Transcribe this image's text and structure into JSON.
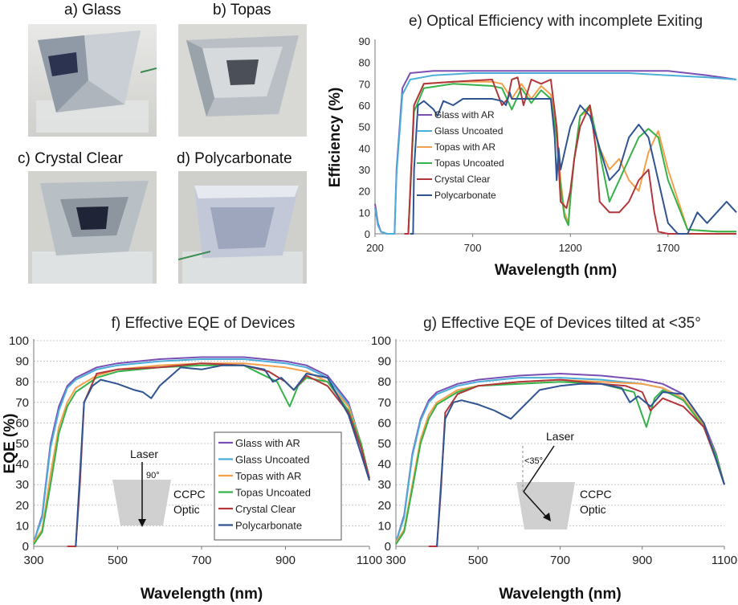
{
  "photos": [
    {
      "label": "a) Glass"
    },
    {
      "label": "b) Topas"
    },
    {
      "label": "c) Crystal Clear"
    },
    {
      "label": "d) Polycarbonate"
    }
  ],
  "colors": {
    "glass_ar": "#7a4fb4",
    "glass_uncoated": "#4aaed8",
    "topas_ar": "#f4a04a",
    "topas_uncoated": "#36b24a",
    "crystal_clear": "#b3363a",
    "polycarbonate": "#2f5491"
  },
  "chart_data": [
    {
      "type": "line",
      "title": "e) Optical Efficiency with incomplete Exiting",
      "xlabel": "Wavelength (nm)",
      "ylabel": "Efficiency (%)",
      "xlim": [
        200,
        2050
      ],
      "ylim": [
        0,
        90
      ],
      "xticks": [
        200,
        700,
        1200,
        1700
      ],
      "yticks": [
        0,
        10,
        20,
        30,
        40,
        50,
        60,
        70,
        80,
        90
      ],
      "grid": false,
      "legend_position": "left-center",
      "series": [
        {
          "name": "Glass with AR",
          "x": [
            200,
            215,
            230,
            260,
            290,
            300,
            310,
            340,
            380,
            500,
            700,
            900,
            1100,
            1300,
            1500,
            1700,
            1900,
            2050
          ],
          "y": [
            14,
            5,
            1,
            0,
            0,
            0,
            30,
            68,
            75,
            76,
            76,
            76,
            76,
            76,
            76,
            76,
            74,
            72
          ]
        },
        {
          "name": "Glass Uncoated",
          "x": [
            200,
            215,
            230,
            260,
            290,
            300,
            310,
            340,
            380,
            500,
            700,
            900,
            1100,
            1300,
            1500,
            1700,
            1900,
            2050
          ],
          "y": [
            12,
            4,
            1,
            0,
            0,
            0,
            28,
            65,
            72,
            74,
            75,
            75,
            75,
            75,
            75,
            74,
            73,
            72
          ]
        },
        {
          "name": "Topas with AR",
          "x": [
            350,
            370,
            380,
            400,
            450,
            600,
            800,
            850,
            900,
            950,
            1000,
            1050,
            1100,
            1130,
            1150,
            1170,
            1190,
            1200,
            1220,
            1250,
            1300,
            1350,
            1400,
            1450,
            1500,
            1550,
            1600,
            1650,
            1700,
            1800,
            1950,
            2050
          ],
          "y": [
            0,
            0,
            20,
            60,
            70,
            71,
            71,
            70,
            63,
            70,
            63,
            69,
            65,
            50,
            25,
            10,
            5,
            18,
            35,
            55,
            58,
            40,
            30,
            35,
            25,
            20,
            38,
            48,
            30,
            2,
            1,
            1
          ]
        },
        {
          "name": "Topas Uncoated",
          "x": [
            350,
            370,
            380,
            400,
            450,
            600,
            800,
            850,
            900,
            950,
            1000,
            1050,
            1100,
            1130,
            1150,
            1170,
            1190,
            1200,
            1220,
            1250,
            1300,
            1350,
            1400,
            1450,
            1500,
            1550,
            1600,
            1650,
            1700,
            1800,
            1950,
            2050
          ],
          "y": [
            0,
            0,
            18,
            57,
            68,
            70,
            69,
            68,
            58,
            68,
            61,
            67,
            63,
            45,
            22,
            8,
            4,
            16,
            35,
            55,
            60,
            38,
            15,
            25,
            35,
            45,
            49,
            45,
            25,
            2,
            1,
            1
          ]
        },
        {
          "name": "Crystal Clear",
          "x": [
            350,
            370,
            380,
            400,
            450,
            600,
            800,
            850,
            880,
            900,
            930,
            960,
            1000,
            1050,
            1100,
            1130,
            1150,
            1180,
            1200,
            1220,
            1250,
            1300,
            1330,
            1350,
            1400,
            1450,
            1500,
            1550,
            1600,
            1630,
            1650,
            1700,
            1800,
            1950,
            2050
          ],
          "y": [
            0,
            0,
            20,
            60,
            70,
            71,
            72,
            60,
            63,
            72,
            73,
            60,
            72,
            70,
            72,
            50,
            15,
            12,
            20,
            35,
            50,
            60,
            40,
            15,
            10,
            10,
            15,
            25,
            30,
            10,
            1,
            0,
            0,
            0,
            0
          ]
        },
        {
          "name": "Polycarbonate",
          "x": [
            380,
            395,
            400,
            420,
            450,
            500,
            520,
            550,
            600,
            650,
            700,
            750,
            800,
            850,
            870,
            890,
            900,
            950,
            1000,
            1050,
            1100,
            1120,
            1130,
            1140,
            1150,
            1200,
            1250,
            1300,
            1350,
            1400,
            1450,
            1500,
            1550,
            1600,
            1650,
            1700,
            1750,
            1800,
            1850,
            1900,
            1950,
            2000,
            2050
          ],
          "y": [
            0,
            0,
            30,
            60,
            62,
            58,
            55,
            62,
            60,
            63,
            63,
            63,
            63,
            62,
            60,
            66,
            63,
            63,
            63,
            63,
            63,
            45,
            25,
            40,
            30,
            50,
            60,
            55,
            40,
            25,
            30,
            45,
            51,
            45,
            25,
            5,
            0,
            0,
            10,
            5,
            10,
            15,
            10
          ]
        }
      ]
    },
    {
      "type": "line",
      "title": "f) Effective EQE of Devices",
      "xlabel": "Wavelength (nm)",
      "ylabel": "EQE (%)",
      "xlim": [
        300,
        1100
      ],
      "ylim": [
        0,
        100
      ],
      "xticks": [
        300,
        500,
        700,
        900,
        1100
      ],
      "yticks": [
        0,
        10,
        20,
        30,
        40,
        50,
        60,
        70,
        80,
        90,
        100
      ],
      "grid": true,
      "legend_position": "bottom-right",
      "annotation": {
        "laser": "Laser",
        "angle": "90°",
        "optic_line1": "CCPC",
        "optic_line2": "Optic"
      },
      "series": [
        {
          "name": "Glass with AR",
          "x": [
            300,
            320,
            340,
            360,
            380,
            400,
            450,
            500,
            600,
            700,
            800,
            900,
            950,
            1000,
            1050,
            1080,
            1100
          ],
          "y": [
            2,
            15,
            50,
            68,
            78,
            82,
            87,
            89,
            91,
            92,
            92,
            90,
            88,
            83,
            70,
            50,
            33
          ]
        },
        {
          "name": "Glass Uncoated",
          "x": [
            300,
            320,
            340,
            360,
            380,
            400,
            450,
            500,
            600,
            700,
            800,
            900,
            950,
            1000,
            1050,
            1080,
            1100
          ],
          "y": [
            2,
            14,
            48,
            66,
            77,
            81,
            86,
            88,
            90,
            91,
            91,
            89,
            87,
            82,
            69,
            50,
            33
          ]
        },
        {
          "name": "Topas with AR",
          "x": [
            300,
            320,
            340,
            360,
            380,
            400,
            450,
            500,
            600,
            700,
            800,
            900,
            950,
            1000,
            1050,
            1080,
            1100
          ],
          "y": [
            2,
            8,
            35,
            58,
            70,
            77,
            83,
            86,
            88,
            89,
            89,
            87,
            85,
            80,
            68,
            50,
            33
          ]
        },
        {
          "name": "Topas Uncoated",
          "x": [
            300,
            320,
            340,
            360,
            380,
            400,
            450,
            500,
            600,
            700,
            800,
            880,
            910,
            930,
            950,
            1000,
            1050,
            1080,
            1100
          ],
          "y": [
            1,
            7,
            30,
            55,
            68,
            75,
            82,
            85,
            87,
            88,
            88,
            80,
            68,
            78,
            82,
            80,
            66,
            50,
            33
          ]
        },
        {
          "name": "Crystal Clear",
          "x": [
            380,
            400,
            410,
            420,
            450,
            500,
            600,
            700,
            800,
            860,
            900,
            920,
            950,
            1000,
            1050,
            1080,
            1100
          ],
          "y": [
            0,
            0,
            30,
            70,
            84,
            86,
            87,
            89,
            88,
            85,
            80,
            76,
            83,
            78,
            65,
            48,
            33
          ]
        },
        {
          "name": "Polycarbonate",
          "x": [
            400,
            420,
            440,
            460,
            500,
            540,
            560,
            580,
            600,
            650,
            700,
            750,
            800,
            850,
            870,
            890,
            920,
            950,
            1000,
            1050,
            1080,
            1100
          ],
          "y": [
            0,
            70,
            78,
            81,
            79,
            76,
            75,
            72,
            78,
            87,
            86,
            88,
            88,
            86,
            80,
            82,
            76,
            84,
            82,
            64,
            45,
            32
          ]
        }
      ]
    },
    {
      "type": "line",
      "title": "g) Effective EQE of Devices tilted at <35°",
      "xlabel": "Wavelength (nm)",
      "ylabel": "",
      "xlim": [
        300,
        1100
      ],
      "ylim": [
        0,
        100
      ],
      "xticks": [
        300,
        500,
        700,
        900,
        1100
      ],
      "yticks": [
        0,
        10,
        20,
        30,
        40,
        50,
        60,
        70,
        80,
        90,
        100
      ],
      "grid": true,
      "legend_position": "none",
      "annotation": {
        "laser": "Laser",
        "angle": "<35°",
        "optic_line1": "CCPC",
        "optic_line2": "Optic"
      },
      "series": [
        {
          "name": "Glass with AR",
          "x": [
            300,
            320,
            340,
            360,
            380,
            400,
            450,
            500,
            600,
            700,
            800,
            900,
            950,
            1000,
            1050,
            1080,
            1100
          ],
          "y": [
            2,
            15,
            45,
            62,
            71,
            75,
            79,
            81,
            83,
            84,
            83,
            81,
            79,
            74,
            60,
            45,
            30
          ]
        },
        {
          "name": "Glass Uncoated",
          "x": [
            300,
            320,
            340,
            360,
            380,
            400,
            450,
            500,
            600,
            700,
            800,
            900,
            950,
            1000,
            1050,
            1080,
            1100
          ],
          "y": [
            2,
            14,
            44,
            61,
            70,
            74,
            78,
            80,
            82,
            82,
            81,
            79,
            77,
            72,
            58,
            43,
            30
          ]
        },
        {
          "name": "Topas with AR",
          "x": [
            300,
            320,
            340,
            360,
            380,
            400,
            450,
            500,
            600,
            700,
            800,
            900,
            950,
            1000,
            1050,
            1080,
            1100
          ],
          "y": [
            2,
            8,
            30,
            52,
            64,
            70,
            76,
            78,
            80,
            81,
            80,
            79,
            77,
            72,
            59,
            44,
            30
          ]
        },
        {
          "name": "Topas Uncoated",
          "x": [
            300,
            320,
            340,
            360,
            380,
            400,
            450,
            500,
            600,
            700,
            800,
            880,
            910,
            930,
            950,
            1000,
            1050,
            1080,
            1100
          ],
          "y": [
            1,
            7,
            28,
            50,
            62,
            69,
            75,
            78,
            79,
            80,
            79,
            75,
            58,
            72,
            76,
            71,
            58,
            44,
            30
          ]
        },
        {
          "name": "Crystal Clear",
          "x": [
            380,
            400,
            410,
            420,
            450,
            500,
            600,
            700,
            800,
            860,
            900,
            920,
            950,
            1000,
            1050,
            1080,
            1100
          ],
          "y": [
            0,
            0,
            28,
            65,
            74,
            78,
            80,
            81,
            79,
            78,
            75,
            66,
            72,
            68,
            58,
            42,
            30
          ]
        },
        {
          "name": "Polycarbonate",
          "x": [
            400,
            420,
            440,
            460,
            500,
            540,
            560,
            580,
            600,
            650,
            700,
            750,
            800,
            850,
            870,
            890,
            920,
            950,
            1000,
            1050,
            1080,
            1100
          ],
          "y": [
            0,
            62,
            70,
            71,
            69,
            66,
            64,
            62,
            66,
            76,
            78,
            79,
            79,
            77,
            70,
            73,
            68,
            75,
            74,
            60,
            42,
            30
          ]
        }
      ]
    }
  ]
}
